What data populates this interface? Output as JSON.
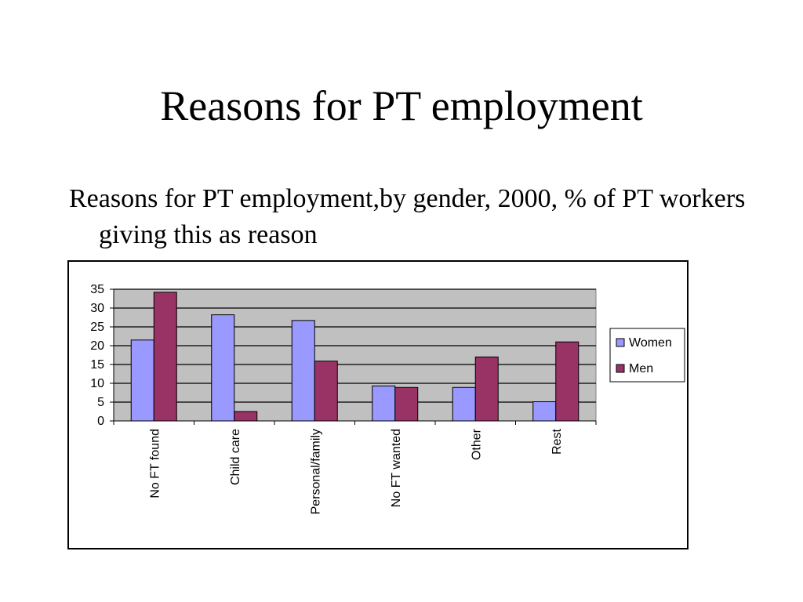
{
  "slide": {
    "title": "Reasons for PT employment",
    "subtitle": "Reasons for PT employment,by gender, 2000, % of PT workers giving this as reason"
  },
  "colors": {
    "plot_background": "#c0c0c0",
    "women": "#9999ff",
    "men": "#993366",
    "gridline": "#000000"
  },
  "chart_data": {
    "type": "bar",
    "title": "",
    "xlabel": "",
    "ylabel": "",
    "categories": [
      "No FT found",
      "Child care",
      "Personal/family",
      "No FT wanted",
      "Other",
      "Rest"
    ],
    "series": [
      {
        "name": "Women",
        "values": [
          21.5,
          28.2,
          26.7,
          9.3,
          8.9,
          5.1
        ]
      },
      {
        "name": "Men",
        "values": [
          34.2,
          2.5,
          15.9,
          8.9,
          17.0,
          21.0
        ]
      }
    ],
    "ylim": [
      0,
      35
    ],
    "yticks": [
      0,
      5,
      10,
      15,
      20,
      25,
      30,
      35
    ],
    "grid": true,
    "legend": "right"
  }
}
